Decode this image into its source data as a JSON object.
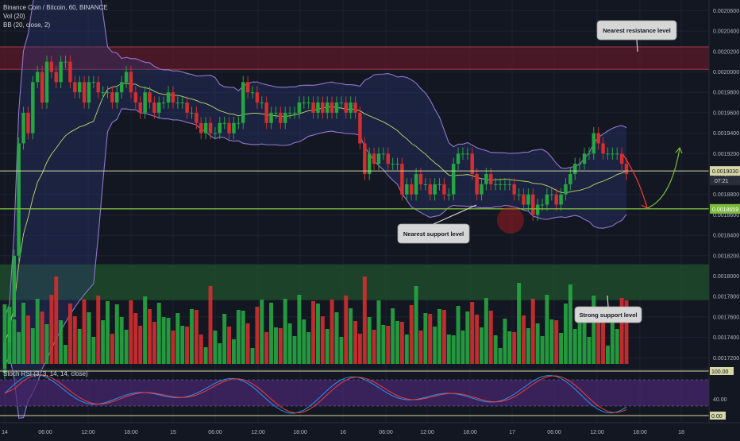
{
  "header": {
    "title": "Binance Coin / Bitcoin, 60, BINANCE",
    "indicators": [
      "Vol (20)",
      "BB (20, close, 2)"
    ]
  },
  "stoch": {
    "label": "Stoch RSI (3, 3, 14, 14, close)",
    "level_label": "40.00",
    "top_tag": "100.00",
    "bottom_tag": "0.00"
  },
  "callouts": {
    "resistance": "Nearest resistance level",
    "support": "Nearest support level",
    "strong_support": "Strong support level"
  },
  "price_tags": {
    "current": "0.0019030",
    "countdown": "07:21",
    "support": "0.0018659"
  },
  "colors": {
    "up": "#26a641",
    "down": "#d32f2f",
    "upper_band": "#9575cd",
    "basis": "#c5d86d",
    "stoch_k": "#2196f3",
    "stoch_d": "#ef3b3b",
    "support_line": "#7cbb3c",
    "resistance_zone": "#5c1a2a",
    "support_zone": "#1e4a2a"
  },
  "chart_data": {
    "type": "candlestick",
    "symbol": "Binance Coin / Bitcoin",
    "interval": "60",
    "exchange": "BINANCE",
    "y_ticks": [
      "0.0020600",
      "0.0020400",
      "0.0020200",
      "0.0020000",
      "0.0019800",
      "0.0019600",
      "0.0019400",
      "0.0019200",
      "0.0019000",
      "0.0018800",
      "0.0018600",
      "0.0018400",
      "0.0018200",
      "0.0018000",
      "0.0017800",
      "0.0017600",
      "0.0017400",
      "0.0017200"
    ],
    "x_ticks": [
      "14",
      "06:00",
      "12:00",
      "18:00",
      "15",
      "06:00",
      "12:00",
      "18:00",
      "16",
      "06:00",
      "12:00",
      "18:00",
      "17",
      "06:00",
      "12:00",
      "18:00",
      "18"
    ],
    "ylim": [
      0.00171,
      0.00207
    ],
    "current_price": 0.001903,
    "support_price": 0.0018659,
    "resistance_zone": [
      0.0020025,
      0.0020245
    ],
    "support_zone": [
      0.0017765,
      0.0018115
    ],
    "closes": [
      0.001735,
      0.00176,
      0.00182,
      0.00193,
      0.00196,
      0.00194,
      0.00199,
      0.002,
      0.00197,
      0.00201,
      0.002,
      0.00199,
      0.00201,
      0.00201,
      0.00199,
      0.00198,
      0.00199,
      0.00197,
      0.00199,
      0.00199,
      0.00198,
      0.00198,
      0.00198,
      0.00197,
      0.00198,
      0.00199,
      0.002,
      0.00198,
      0.00197,
      0.00196,
      0.00198,
      0.00197,
      0.00196,
      0.00197,
      0.00197,
      0.00198,
      0.00197,
      0.00197,
      0.00197,
      0.00196,
      0.00196,
      0.00195,
      0.00194,
      0.00195,
      0.00194,
      0.00194,
      0.00195,
      0.00195,
      0.00194,
      0.00195,
      0.00195,
      0.00199,
      0.00198,
      0.00198,
      0.00197,
      0.00197,
      0.00195,
      0.00196,
      0.00196,
      0.00195,
      0.00196,
      0.00196,
      0.00196,
      0.00197,
      0.00197,
      0.00197,
      0.00196,
      0.00197,
      0.00196,
      0.00197,
      0.00196,
      0.00197,
      0.00197,
      0.00196,
      0.00197,
      0.00196,
      0.00193,
      0.0019,
      0.00192,
      0.00191,
      0.00192,
      0.00192,
      0.00191,
      0.00191,
      0.00191,
      0.00188,
      0.00189,
      0.00188,
      0.0019,
      0.00189,
      0.00189,
      0.00188,
      0.00189,
      0.00189,
      0.00188,
      0.00188,
      0.00191,
      0.00192,
      0.00192,
      0.00192,
      0.0019,
      0.00188,
      0.00189,
      0.0019,
      0.00189,
      0.00189,
      0.00189,
      0.00189,
      0.00189,
      0.00188,
      0.00188,
      0.00187,
      0.00188,
      0.00186,
      0.00187,
      0.00187,
      0.00188,
      0.00188,
      0.00187,
      0.00188,
      0.00189,
      0.0019,
      0.00191,
      0.00191,
      0.00192,
      0.00192,
      0.00194,
      0.00193,
      0.00192,
      0.00192,
      0.00192,
      0.00192,
      0.00191,
      0.0019
    ],
    "volume_scale": "relative (axis not labeled)",
    "bollinger": {
      "period": 20,
      "source": "close",
      "mult": 2
    },
    "stoch_rsi": {
      "k": 3,
      "d": 3,
      "rsi_length": 14,
      "stoch_length": 14,
      "source": "close",
      "levels": [
        80,
        20
      ]
    }
  }
}
